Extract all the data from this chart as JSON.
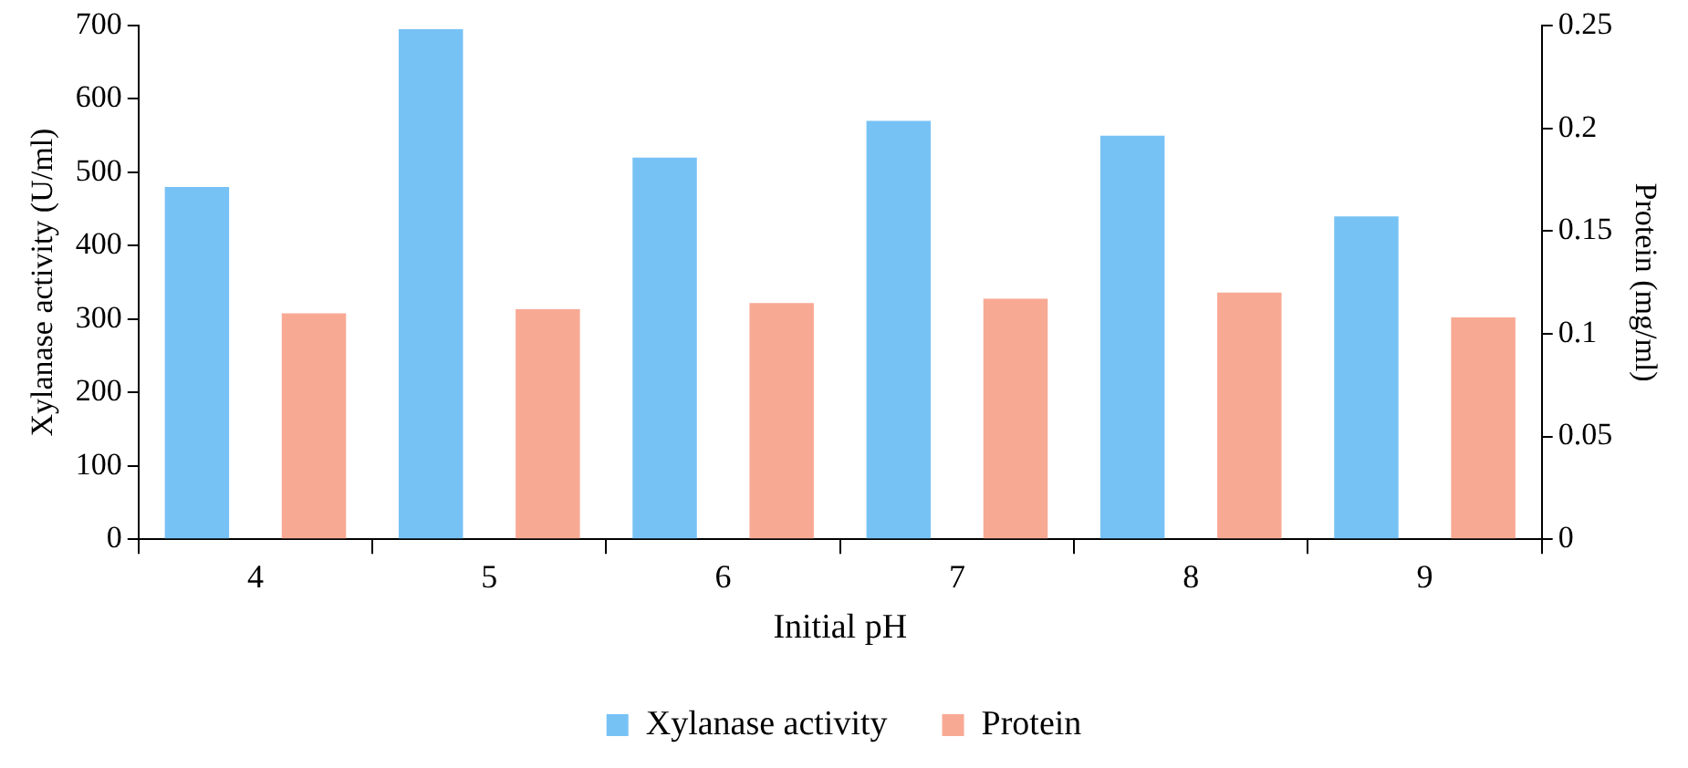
{
  "chart_data": {
    "type": "bar",
    "xlabel": "Initial pH",
    "ylabel": "Xylanase activity (U/ml)",
    "y2label": "Protein (mg/ml)",
    "categories": [
      "4",
      "5",
      "6",
      "7",
      "8",
      "9"
    ],
    "series": [
      {
        "name": "Xylanase activity",
        "color": "#77c2f5",
        "values": [
          480,
          695,
          520,
          570,
          550,
          440
        ]
      },
      {
        "name": "Protein",
        "color": "#f8a994",
        "axis": "y2",
        "values": [
          0.11,
          0.112,
          0.115,
          0.117,
          0.12,
          0.108
        ]
      }
    ],
    "ylim": [
      0,
      700
    ],
    "yticks": [
      0,
      100,
      200,
      300,
      400,
      500,
      600,
      700
    ],
    "y2lim": [
      0,
      0.25
    ],
    "y2ticks": [
      0,
      0.05,
      0.1,
      0.15,
      0.2,
      0.25
    ],
    "grid": false,
    "legend": "bottom"
  }
}
